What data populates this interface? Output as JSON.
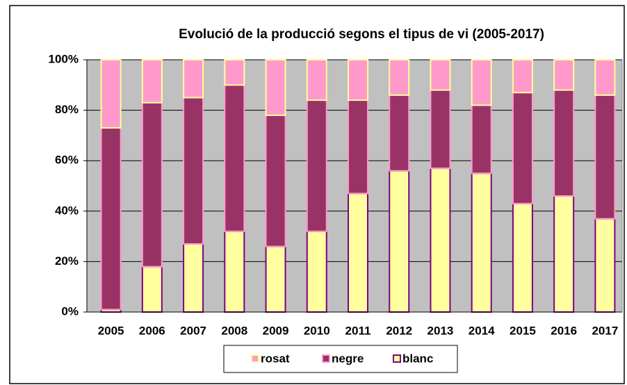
{
  "chart_data": {
    "type": "stacked_bar",
    "title": "Evolució de la producció segons el tipus de vi (2005-2017)",
    "categories": [
      "2005",
      "2006",
      "2007",
      "2008",
      "2009",
      "2010",
      "2011",
      "2012",
      "2013",
      "2014",
      "2015",
      "2016",
      "2017"
    ],
    "series": [
      {
        "name": "blanc",
        "color": "#ffffa0",
        "border": "#800080",
        "values": [
          1,
          18,
          27,
          32,
          26,
          32,
          47,
          56,
          57,
          55,
          43,
          46,
          37
        ]
      },
      {
        "name": "negre",
        "color": "#993366",
        "border": "#ff99cc",
        "values": [
          72,
          65,
          58,
          58,
          52,
          52,
          37,
          30,
          31,
          27,
          44,
          42,
          49
        ]
      },
      {
        "name": "rosat",
        "color": "#ff99cc",
        "border": "#ffff99",
        "values": [
          27,
          17,
          15,
          10,
          22,
          16,
          16,
          14,
          12,
          18,
          13,
          12,
          14
        ]
      }
    ],
    "ylim": [
      0,
      100
    ],
    "yticks": [
      {
        "value": 0,
        "label": "0%"
      },
      {
        "value": 20,
        "label": "20%"
      },
      {
        "value": 40,
        "label": "40%"
      },
      {
        "value": 60,
        "label": "60%"
      },
      {
        "value": 80,
        "label": "80%"
      },
      {
        "value": 100,
        "label": "100%"
      }
    ],
    "grid": true,
    "legend": "bottom",
    "plot_background": "#c0c0c0"
  }
}
